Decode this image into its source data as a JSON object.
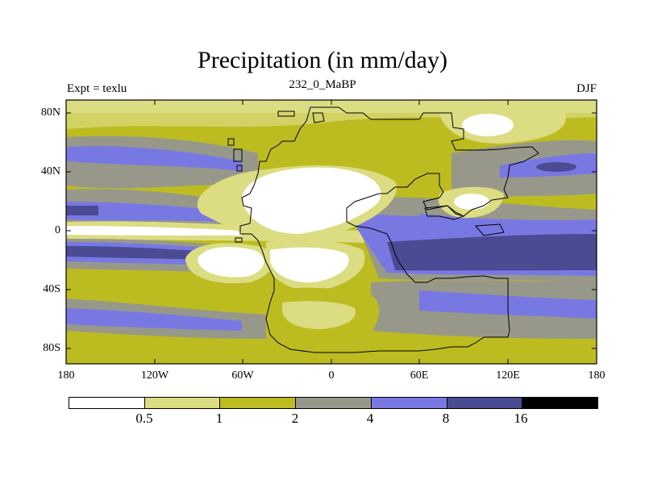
{
  "title": "Precipitation (in mm/day)",
  "subtitle_left": "Expt = texlu",
  "subtitle_center": "232_0_MaBP",
  "subtitle_right": "DJF",
  "y_ticks": [
    "80N",
    "40N",
    "0",
    "40S",
    "80S"
  ],
  "x_ticks": [
    "180",
    "120W",
    "60W",
    "0",
    "60E",
    "120E",
    "180"
  ],
  "colorbar": {
    "labels": [
      "0.5",
      "1",
      "2",
      "4",
      "8",
      "16"
    ],
    "colors": [
      "#ffffff",
      "#dcdc82",
      "#bcbc21",
      "#98988a",
      "#7878e3",
      "#4b4b94",
      "#000000"
    ]
  },
  "chart_data": {
    "type": "heatmap",
    "title": "Precipitation (in mm/day)",
    "variable": "Precipitation",
    "units": "mm/day",
    "season": "DJF",
    "experiment": "texlu",
    "x_range": [
      -180,
      180
    ],
    "y_range": [
      -90,
      90
    ],
    "levels": [
      0.5,
      1,
      2,
      4,
      8,
      16
    ]
  }
}
